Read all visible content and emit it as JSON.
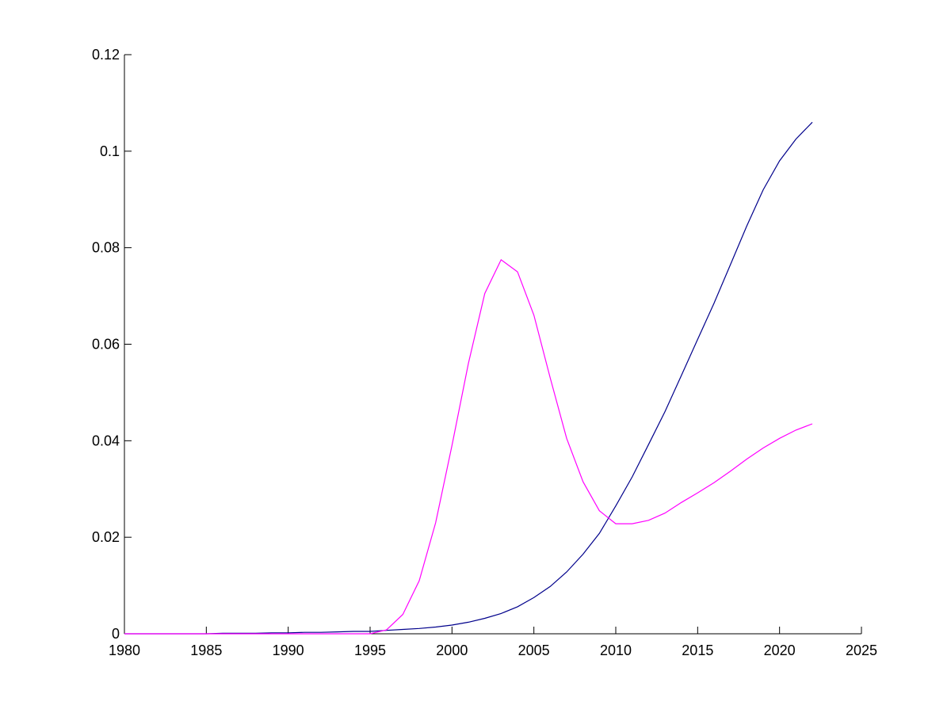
{
  "chart_data": {
    "type": "line",
    "title": "",
    "xlabel": "",
    "ylabel": "",
    "xlim": [
      1980,
      2025
    ],
    "ylim": [
      0,
      0.12
    ],
    "xticks": [
      1980,
      1985,
      1990,
      1995,
      2000,
      2005,
      2010,
      2015,
      2020,
      2025
    ],
    "yticks": [
      0,
      0.02,
      0.04,
      0.06,
      0.08,
      0.1,
      0.12
    ],
    "xtick_labels": [
      "1980",
      "1985",
      "1990",
      "1995",
      "2000",
      "2005",
      "2010",
      "2015",
      "2020",
      "2025"
    ],
    "ytick_labels": [
      "0",
      "0.02",
      "0.04",
      "0.06",
      "0.08",
      "0.1",
      "0.12"
    ],
    "grid": false,
    "legend": false,
    "series": [
      {
        "color": "#00008B",
        "x": [
          1980,
          1981,
          1982,
          1983,
          1984,
          1985,
          1986,
          1987,
          1988,
          1989,
          1990,
          1991,
          1992,
          1993,
          1994,
          1995,
          1996,
          1997,
          1998,
          1999,
          2000,
          2001,
          2002,
          2003,
          2004,
          2005,
          2006,
          2007,
          2008,
          2009,
          2010,
          2011,
          2012,
          2013,
          2014,
          2015,
          2016,
          2017,
          2018,
          2019,
          2020,
          2021,
          2022
        ],
        "y": [
          0,
          0,
          0,
          0,
          0,
          0,
          0.0001,
          0.0001,
          0.0001,
          0.0002,
          0.0002,
          0.0003,
          0.0003,
          0.0004,
          0.0005,
          0.0005,
          0.0007,
          0.0009,
          0.0011,
          0.0014,
          0.0018,
          0.0024,
          0.0032,
          0.0042,
          0.0056,
          0.0075,
          0.0098,
          0.0128,
          0.0165,
          0.0208,
          0.0265,
          0.0325,
          0.0392,
          0.046,
          0.0535,
          0.061,
          0.0685,
          0.0765,
          0.0845,
          0.092,
          0.098,
          0.1025,
          0.106
        ]
      },
      {
        "color": "#FF00FF",
        "x": [
          1980,
          1981,
          1982,
          1983,
          1984,
          1985,
          1986,
          1987,
          1988,
          1989,
          1990,
          1991,
          1992,
          1993,
          1994,
          1995,
          1996,
          1997,
          1998,
          1999,
          2000,
          2001,
          2002,
          2003,
          2004,
          2005,
          2006,
          2007,
          2008,
          2009,
          2010,
          2011,
          2012,
          2013,
          2014,
          2015,
          2016,
          2017,
          2018,
          2019,
          2020,
          2021,
          2022
        ],
        "y": [
          0,
          0,
          0,
          0,
          0,
          0,
          0,
          0,
          0,
          0,
          0,
          0,
          0,
          0,
          0,
          0,
          0.0008,
          0.004,
          0.011,
          0.023,
          0.039,
          0.056,
          0.0705,
          0.0775,
          0.075,
          0.066,
          0.053,
          0.0405,
          0.0315,
          0.0255,
          0.0228,
          0.0228,
          0.0235,
          0.025,
          0.0272,
          0.0292,
          0.0313,
          0.0337,
          0.0362,
          0.0385,
          0.0405,
          0.0422,
          0.0435
        ]
      }
    ]
  }
}
